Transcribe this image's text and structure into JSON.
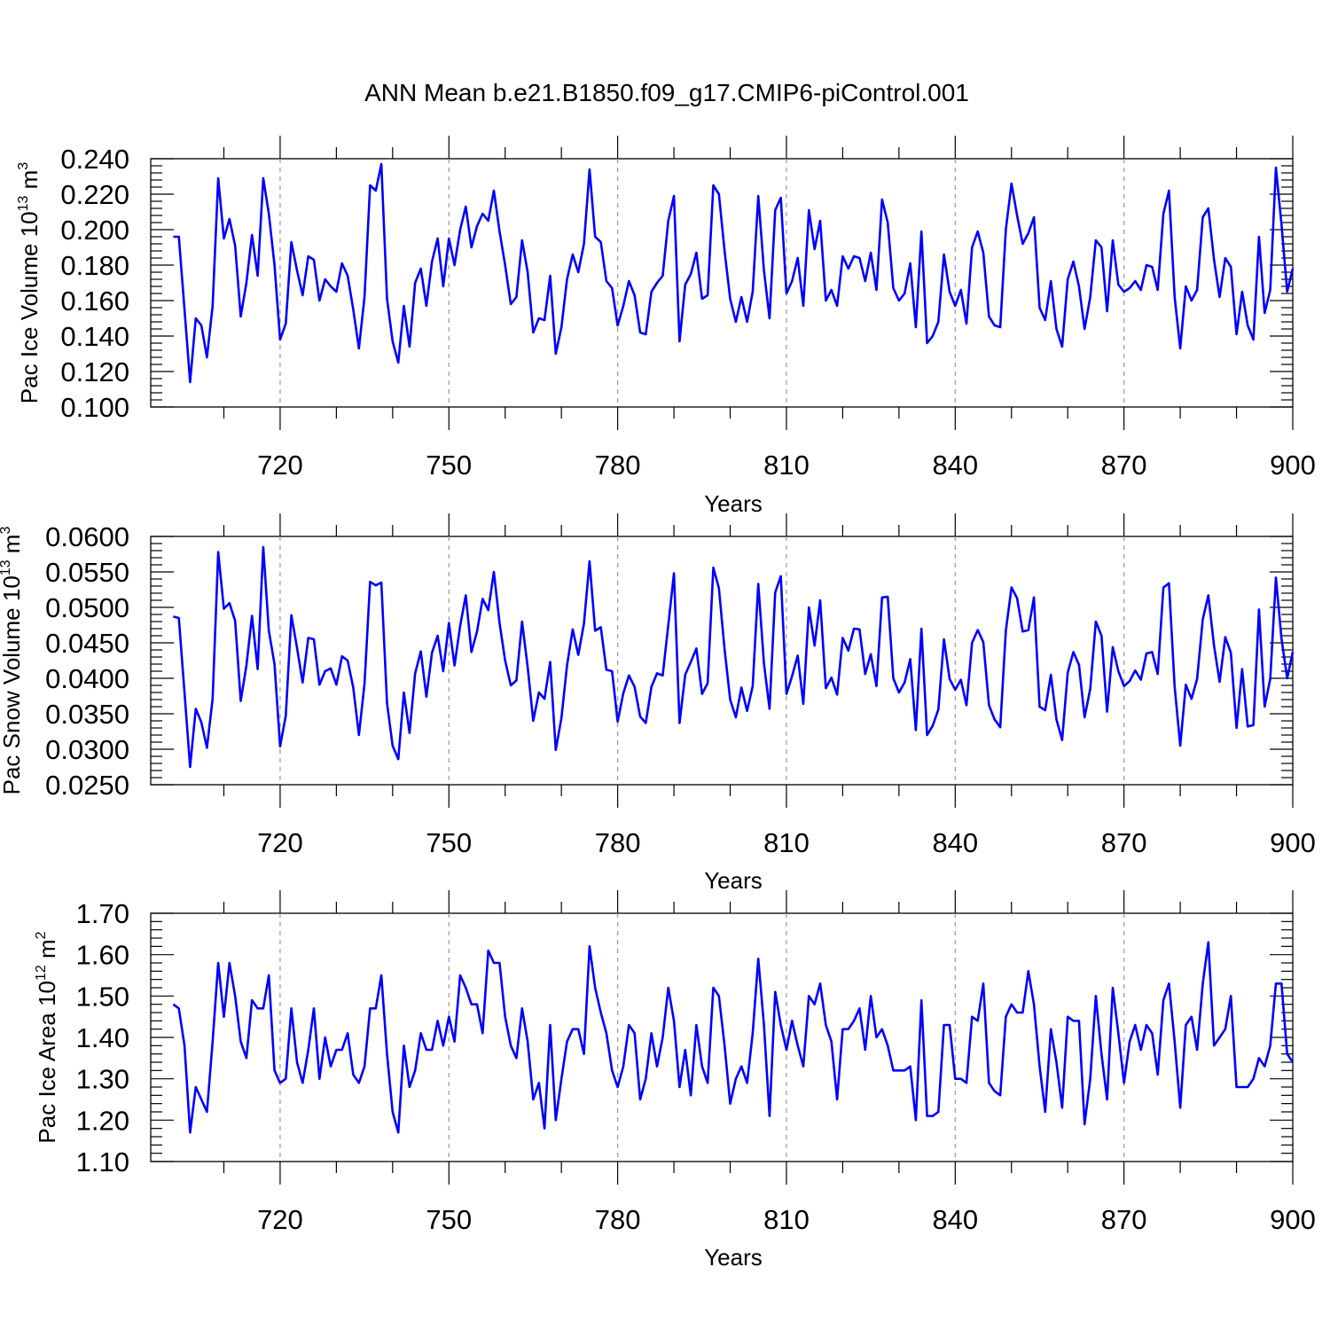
{
  "figure_title": "ANN Mean b.e21.B1850.f09_g17.CMIP6-piControl.001",
  "colors": {
    "series": "#0000ff",
    "grid": "#999999",
    "axes": "#000000"
  },
  "chart_data": [
    {
      "type": "line",
      "ylabel": "Pac Ice Volume 10",
      "ylabel_exp": "13",
      "ylabel_unit": " m",
      "ylabel_unit_exp": "3",
      "xlabel": "Years",
      "ylim": [
        0.1,
        0.24
      ],
      "yticks": [
        "0.100",
        "0.120",
        "0.140",
        "0.160",
        "0.180",
        "0.200",
        "0.220",
        "0.240"
      ],
      "xlim": [
        697,
        900
      ],
      "xticks": [
        "720",
        "750",
        "780",
        "810",
        "840",
        "870",
        "900"
      ],
      "grid_x": true,
      "series": [
        {
          "name": "Pac Ice Volume",
          "x_start": 701,
          "values": [
            0.196,
            0.196,
            0.155,
            0.114,
            0.15,
            0.146,
            0.128,
            0.157,
            0.229,
            0.195,
            0.206,
            0.191,
            0.151,
            0.17,
            0.197,
            0.174,
            0.229,
            0.209,
            0.18,
            0.138,
            0.147,
            0.193,
            0.177,
            0.163,
            0.185,
            0.183,
            0.16,
            0.172,
            0.168,
            0.165,
            0.181,
            0.174,
            0.155,
            0.133,
            0.162,
            0.225,
            0.222,
            0.237,
            0.161,
            0.137,
            0.125,
            0.157,
            0.134,
            0.17,
            0.178,
            0.157,
            0.182,
            0.195,
            0.168,
            0.195,
            0.18,
            0.2,
            0.213,
            0.19,
            0.202,
            0.209,
            0.205,
            0.222,
            0.199,
            0.18,
            0.158,
            0.162,
            0.194,
            0.176,
            0.142,
            0.15,
            0.149,
            0.174,
            0.13,
            0.145,
            0.172,
            0.186,
            0.176,
            0.192,
            0.234,
            0.196,
            0.193,
            0.171,
            0.167,
            0.146,
            0.157,
            0.171,
            0.163,
            0.142,
            0.141,
            0.165,
            0.17,
            0.174,
            0.205,
            0.219,
            0.137,
            0.169,
            0.175,
            0.187,
            0.161,
            0.163,
            0.225,
            0.22,
            0.188,
            0.161,
            0.148,
            0.162,
            0.148,
            0.165,
            0.219,
            0.177,
            0.15,
            0.211,
            0.218,
            0.164,
            0.171,
            0.184,
            0.157,
            0.211,
            0.189,
            0.205,
            0.16,
            0.166,
            0.157,
            0.185,
            0.178,
            0.185,
            0.184,
            0.171,
            0.187,
            0.166,
            0.217,
            0.204,
            0.167,
            0.16,
            0.164,
            0.181,
            0.145,
            0.199,
            0.136,
            0.14,
            0.148,
            0.186,
            0.165,
            0.157,
            0.166,
            0.147,
            0.19,
            0.199,
            0.187,
            0.151,
            0.146,
            0.145,
            0.2,
            0.226,
            0.208,
            0.192,
            0.198,
            0.207,
            0.156,
            0.149,
            0.171,
            0.144,
            0.134,
            0.172,
            0.182,
            0.168,
            0.144,
            0.162,
            0.194,
            0.19,
            0.154,
            0.194,
            0.169,
            0.165,
            0.167,
            0.171,
            0.166,
            0.18,
            0.179,
            0.166,
            0.209,
            0.222,
            0.162,
            0.133,
            0.168,
            0.16,
            0.166,
            0.207,
            0.212,
            0.183,
            0.162,
            0.184,
            0.179,
            0.141,
            0.165,
            0.146,
            0.138,
            0.196,
            0.153,
            0.166,
            0.235,
            0.203,
            0.165,
            0.178
          ]
        }
      ]
    },
    {
      "type": "line",
      "ylabel": "Pac Snow Volume 10",
      "ylabel_exp": "13",
      "ylabel_unit": " m",
      "ylabel_unit_exp": "3",
      "xlabel": "Years",
      "ylim": [
        0.025,
        0.06
      ],
      "yticks": [
        "0.0250",
        "0.0300",
        "0.0350",
        "0.0400",
        "0.0450",
        "0.0500",
        "0.0550",
        "0.0600"
      ],
      "xlim": [
        697,
        900
      ],
      "xticks": [
        "720",
        "750",
        "780",
        "810",
        "840",
        "870",
        "900"
      ],
      "grid_x": true,
      "series": [
        {
          "name": "Pac Snow Volume",
          "x_start": 701,
          "values": [
            0.0487,
            0.0485,
            0.038,
            0.0275,
            0.0357,
            0.0338,
            0.0302,
            0.0371,
            0.0578,
            0.0498,
            0.0506,
            0.0481,
            0.0368,
            0.0418,
            0.0488,
            0.0413,
            0.0585,
            0.0467,
            0.042,
            0.0304,
            0.0347,
            0.0489,
            0.0443,
            0.0394,
            0.0457,
            0.0455,
            0.0391,
            0.041,
            0.0414,
            0.0391,
            0.0431,
            0.0425,
            0.0387,
            0.032,
            0.0392,
            0.0536,
            0.0531,
            0.0535,
            0.0365,
            0.0305,
            0.0286,
            0.038,
            0.0323,
            0.0407,
            0.0438,
            0.0374,
            0.0436,
            0.046,
            0.041,
            0.0478,
            0.0418,
            0.0474,
            0.0517,
            0.0437,
            0.0466,
            0.0512,
            0.0496,
            0.055,
            0.0478,
            0.0425,
            0.039,
            0.0397,
            0.048,
            0.0416,
            0.034,
            0.038,
            0.0371,
            0.0423,
            0.0299,
            0.0344,
            0.0418,
            0.0469,
            0.0433,
            0.0477,
            0.0565,
            0.0467,
            0.0472,
            0.0412,
            0.041,
            0.0339,
            0.0379,
            0.0404,
            0.0388,
            0.0346,
            0.0337,
            0.0388,
            0.0407,
            0.0404,
            0.0475,
            0.0548,
            0.0337,
            0.0405,
            0.0423,
            0.0442,
            0.0378,
            0.0393,
            0.0556,
            0.0527,
            0.0441,
            0.037,
            0.0345,
            0.0387,
            0.0354,
            0.0389,
            0.0533,
            0.0421,
            0.0357,
            0.0521,
            0.0544,
            0.0378,
            0.0403,
            0.0432,
            0.0364,
            0.05,
            0.0446,
            0.051,
            0.0386,
            0.0401,
            0.0377,
            0.0457,
            0.0439,
            0.047,
            0.0469,
            0.0406,
            0.0434,
            0.0389,
            0.0514,
            0.0515,
            0.04,
            0.038,
            0.0394,
            0.0427,
            0.0327,
            0.047,
            0.032,
            0.0333,
            0.0356,
            0.0455,
            0.0399,
            0.0384,
            0.0398,
            0.0362,
            0.045,
            0.0468,
            0.0451,
            0.0362,
            0.0342,
            0.0331,
            0.0467,
            0.0528,
            0.0513,
            0.0466,
            0.0468,
            0.0514,
            0.036,
            0.0355,
            0.0405,
            0.0342,
            0.0313,
            0.0408,
            0.0437,
            0.0419,
            0.0345,
            0.0385,
            0.048,
            0.046,
            0.0353,
            0.0444,
            0.041,
            0.0389,
            0.0396,
            0.0411,
            0.0398,
            0.0435,
            0.0437,
            0.0406,
            0.0528,
            0.0534,
            0.0388,
            0.0305,
            0.0391,
            0.0371,
            0.0399,
            0.0483,
            0.0517,
            0.0446,
            0.0395,
            0.0458,
            0.0436,
            0.033,
            0.0413,
            0.0332,
            0.0334,
            0.0497,
            0.036,
            0.0399,
            0.0542,
            0.0456,
            0.04,
            0.0437
          ]
        }
      ]
    },
    {
      "type": "line",
      "ylabel": "Pac Ice Area 10",
      "ylabel_exp": "12",
      "ylabel_unit": " m",
      "ylabel_unit_exp": "2",
      "xlabel": "Years",
      "ylim": [
        1.1,
        1.7
      ],
      "yticks": [
        "1.10",
        "1.20",
        "1.30",
        "1.40",
        "1.50",
        "1.60",
        "1.70"
      ],
      "xlim": [
        697,
        900
      ],
      "xticks": [
        "720",
        "750",
        "780",
        "810",
        "840",
        "870",
        "900"
      ],
      "grid_x": true,
      "series": [
        {
          "name": "Pac Ice Area",
          "x_start": 701,
          "values": [
            1.48,
            1.47,
            1.38,
            1.17,
            1.28,
            1.25,
            1.22,
            1.39,
            1.58,
            1.45,
            1.58,
            1.5,
            1.39,
            1.35,
            1.49,
            1.47,
            1.47,
            1.55,
            1.32,
            1.29,
            1.3,
            1.47,
            1.34,
            1.29,
            1.37,
            1.47,
            1.3,
            1.4,
            1.33,
            1.37,
            1.37,
            1.41,
            1.31,
            1.29,
            1.33,
            1.47,
            1.47,
            1.55,
            1.36,
            1.22,
            1.17,
            1.38,
            1.28,
            1.32,
            1.41,
            1.37,
            1.37,
            1.44,
            1.38,
            1.45,
            1.39,
            1.55,
            1.52,
            1.48,
            1.48,
            1.41,
            1.61,
            1.58,
            1.58,
            1.45,
            1.38,
            1.35,
            1.47,
            1.39,
            1.25,
            1.29,
            1.18,
            1.43,
            1.2,
            1.3,
            1.39,
            1.42,
            1.42,
            1.36,
            1.62,
            1.52,
            1.46,
            1.41,
            1.32,
            1.28,
            1.33,
            1.43,
            1.41,
            1.25,
            1.3,
            1.41,
            1.33,
            1.4,
            1.52,
            1.44,
            1.28,
            1.37,
            1.26,
            1.43,
            1.33,
            1.29,
            1.52,
            1.5,
            1.38,
            1.24,
            1.3,
            1.33,
            1.29,
            1.41,
            1.59,
            1.43,
            1.21,
            1.51,
            1.43,
            1.37,
            1.44,
            1.38,
            1.33,
            1.5,
            1.48,
            1.53,
            1.43,
            1.39,
            1.25,
            1.42,
            1.42,
            1.44,
            1.47,
            1.37,
            1.5,
            1.4,
            1.42,
            1.38,
            1.32,
            1.32,
            1.32,
            1.33,
            1.2,
            1.49,
            1.21,
            1.21,
            1.22,
            1.43,
            1.43,
            1.3,
            1.3,
            1.29,
            1.45,
            1.44,
            1.53,
            1.29,
            1.27,
            1.26,
            1.45,
            1.48,
            1.46,
            1.46,
            1.56,
            1.48,
            1.33,
            1.22,
            1.42,
            1.34,
            1.23,
            1.45,
            1.44,
            1.44,
            1.19,
            1.3,
            1.5,
            1.36,
            1.25,
            1.52,
            1.41,
            1.29,
            1.39,
            1.43,
            1.37,
            1.43,
            1.41,
            1.31,
            1.49,
            1.53,
            1.39,
            1.23,
            1.43,
            1.45,
            1.37,
            1.53,
            1.63,
            1.38,
            1.4,
            1.42,
            1.5,
            1.28,
            1.28,
            1.28,
            1.3,
            1.35,
            1.33,
            1.38,
            1.53,
            1.53,
            1.36,
            1.34
          ]
        }
      ]
    }
  ]
}
